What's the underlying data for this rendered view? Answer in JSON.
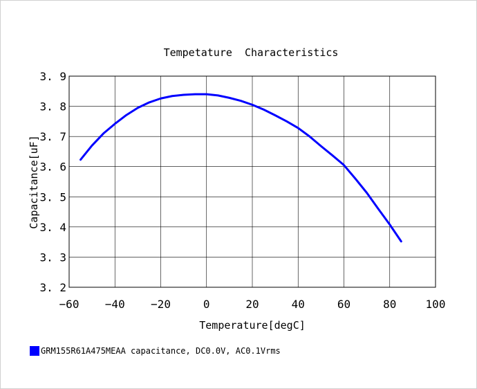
{
  "chart_data": {
    "type": "line",
    "title": "Tempetature  Characteristics",
    "xlabel": "Temperature[degC]",
    "ylabel": "Capacitance[uF]",
    "xlim": [
      -60,
      100
    ],
    "ylim": [
      3.2,
      3.9
    ],
    "xticks": [
      -60,
      -40,
      -20,
      0,
      20,
      40,
      60,
      80,
      100
    ],
    "xtick_labels": [
      "−60",
      "−40",
      "−20",
      "0",
      "20",
      "40",
      "60",
      "80",
      "100"
    ],
    "yticks": [
      3.2,
      3.3,
      3.4,
      3.5,
      3.6,
      3.7,
      3.8,
      3.9
    ],
    "ytick_labels": [
      "3. 2",
      "3. 3",
      "3. 4",
      "3. 5",
      "3. 6",
      "3. 7",
      "3. 8",
      "3. 9"
    ],
    "grid": true,
    "legend_position": "bottom-left",
    "series": [
      {
        "name": "GRM155R61A475MEAA capacitance, DC0.0V, AC0.1Vrms",
        "color": "#0000ff",
        "x": [
          -55,
          -50,
          -45,
          -40,
          -35,
          -30,
          -25,
          -20,
          -15,
          -10,
          -5,
          0,
          5,
          10,
          15,
          20,
          25,
          30,
          35,
          40,
          45,
          50,
          55,
          60,
          65,
          70,
          75,
          80,
          85
        ],
        "y": [
          3.623,
          3.67,
          3.71,
          3.742,
          3.771,
          3.795,
          3.813,
          3.826,
          3.834,
          3.838,
          3.84,
          3.84,
          3.836,
          3.828,
          3.818,
          3.805,
          3.789,
          3.77,
          3.75,
          3.728,
          3.7,
          3.668,
          3.637,
          3.605,
          3.56,
          3.513,
          3.46,
          3.408,
          3.352
        ]
      }
    ]
  },
  "legend": {
    "text": "GRM155R61A475MEAA capacitance, DC0.0V, AC0.1Vrms",
    "color": "#0000ff"
  }
}
